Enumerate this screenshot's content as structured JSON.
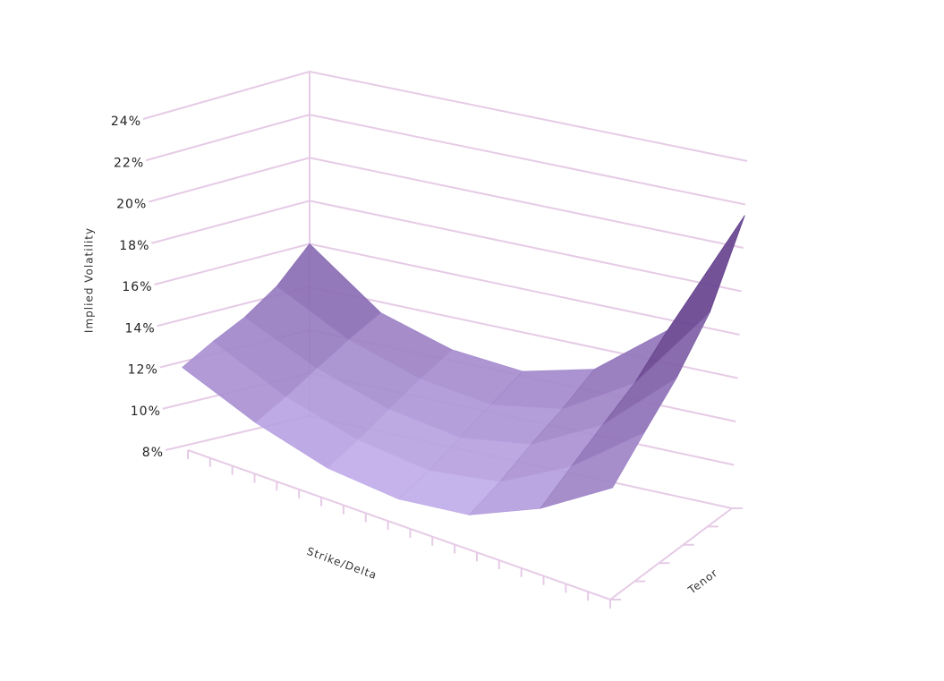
{
  "chart_data": {
    "type": "surface",
    "zlabel": "Implied Volatility",
    "xlabel": "Strike/Delta",
    "ylabel": "Tenor",
    "z": [
      [
        12,
        10.5,
        9.5,
        9.2,
        9.6,
        11,
        13
      ],
      [
        12.8,
        11.2,
        10.2,
        9.8,
        10.3,
        12,
        14.5
      ],
      [
        13.5,
        12,
        11,
        10.6,
        11.2,
        13,
        16
      ],
      [
        14.5,
        12.8,
        11.8,
        11.4,
        12,
        14,
        18
      ],
      [
        16,
        13.5,
        12.5,
        12.2,
        13,
        15.5,
        21.5
      ]
    ],
    "zlim": [
      8,
      24
    ],
    "zticks": [
      {
        "value": 8,
        "label": "8%"
      },
      {
        "value": 10,
        "label": "10%"
      },
      {
        "value": 12,
        "label": "12%"
      },
      {
        "value": 14,
        "label": "14%"
      },
      {
        "value": 16,
        "label": "16%"
      },
      {
        "value": 18,
        "label": "18%"
      },
      {
        "value": 20,
        "label": "20%"
      },
      {
        "value": 22,
        "label": "22%"
      },
      {
        "value": 24,
        "label": "24%"
      }
    ],
    "colorscale": [
      "#c9b6f2",
      "#3a0f62"
    ],
    "grid": true
  }
}
